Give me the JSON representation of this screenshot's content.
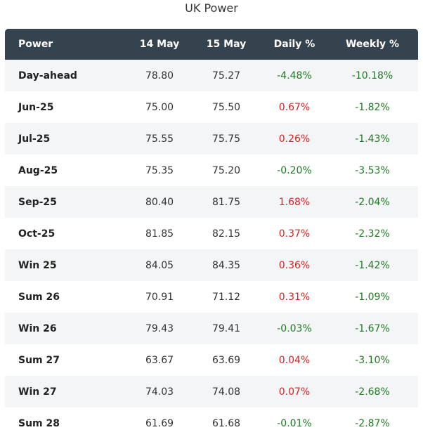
{
  "title": "UK Power",
  "columns": [
    "Power",
    "14 May",
    "15 May",
    "Daily %",
    "Weekly %"
  ],
  "rows": [
    {
      "name": "Day-ahead",
      "d14": "78.80",
      "d15": "75.27",
      "daily": "-4.48%",
      "weekly": "-10.18%"
    },
    {
      "name": "Jun-25",
      "d14": "75.00",
      "d15": "75.50",
      "daily": "0.67%",
      "weekly": "-1.82%"
    },
    {
      "name": "Jul-25",
      "d14": "75.55",
      "d15": "75.75",
      "daily": "0.26%",
      "weekly": "-1.43%"
    },
    {
      "name": "Aug-25",
      "d14": "75.35",
      "d15": "75.20",
      "daily": "-0.20%",
      "weekly": "-3.53%"
    },
    {
      "name": "Sep-25",
      "d14": "80.40",
      "d15": "81.75",
      "daily": "1.68%",
      "weekly": "-2.04%"
    },
    {
      "name": "Oct-25",
      "d14": "81.85",
      "d15": "82.15",
      "daily": "0.37%",
      "weekly": "-2.32%"
    },
    {
      "name": "Win 25",
      "d14": "84.05",
      "d15": "84.35",
      "daily": "0.36%",
      "weekly": "-1.42%"
    },
    {
      "name": "Sum 26",
      "d14": "70.91",
      "d15": "71.12",
      "daily": "0.31%",
      "weekly": "-1.09%"
    },
    {
      "name": "Win 26",
      "d14": "79.43",
      "d15": "79.41",
      "daily": "-0.03%",
      "weekly": "-1.67%"
    },
    {
      "name": "Sum 27",
      "d14": "63.67",
      "d15": "63.69",
      "daily": "0.04%",
      "weekly": "-3.10%"
    },
    {
      "name": "Win 27",
      "d14": "74.03",
      "d15": "74.08",
      "daily": "0.07%",
      "weekly": "-2.68%"
    },
    {
      "name": "Sum 28",
      "d14": "61.69",
      "d15": "61.68",
      "daily": "-0.01%",
      "weekly": "-2.87%"
    }
  ],
  "colors": {
    "header_bg": "#35434f",
    "negative": "#1e7a22",
    "positive": "#d32424",
    "stripe": "#f4f5f6"
  }
}
